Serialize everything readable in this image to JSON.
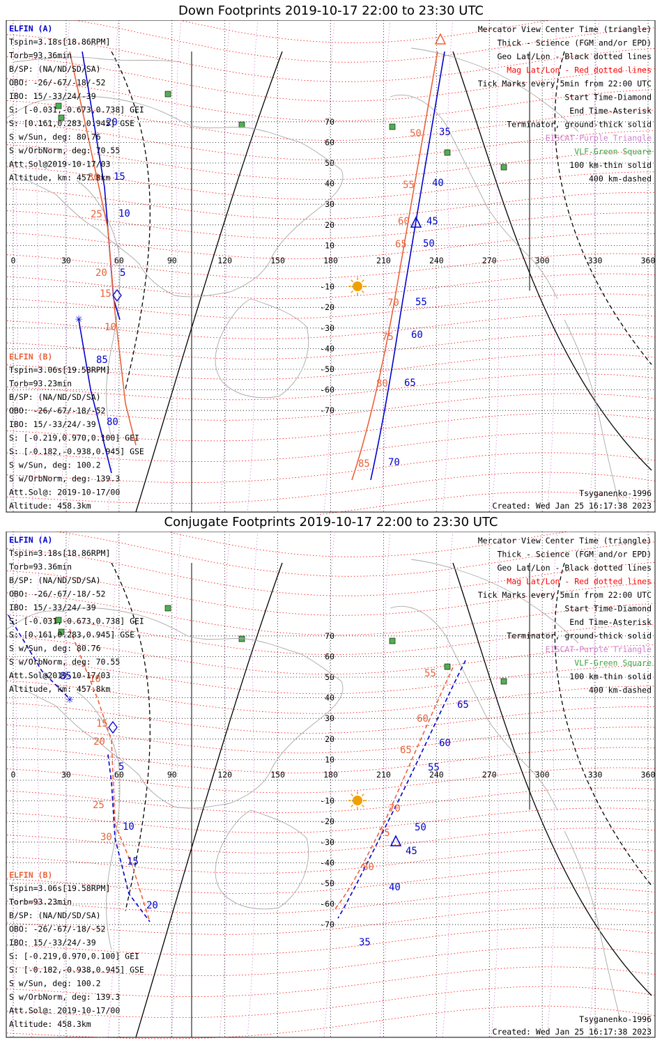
{
  "panels": [
    {
      "title": "Down Footprints 2019-10-17 22:00 to 23:30 UTC",
      "elfin_a": {
        "label": "ELFIN (A)",
        "lines": [
          "Tspin=3.18s[18.86RPM]",
          "Torb=93.36min",
          "B/SP: (NA/ND/SD/SA)",
          "OBO: -26/-67/-18/-52",
          "IBO: 15/-33/24/-39",
          "S: [-0.031,-0.673,0.738] GEI",
          "S: [0.161,0.283,0.945] GSE",
          "S w/Sun, deg: 80.76",
          "S w/OrbNorm, deg: 70.55",
          "Att.Sol@2019-10-17/03",
          "Altitude, km: 457.8km"
        ]
      },
      "elfin_b": {
        "label": "ELFIN (B)",
        "lines": [
          "Tspin=3.06s[19.58RPM]",
          "Torb=93.23min",
          "B/SP: (NA/ND/SD/SA)",
          "OBO: -26/-67/-18/-52",
          "IBO: 15/-33/24/-39",
          "S: [-0.219,0.970,0.100] GEI",
          "S: [-0.182,-0.938,0.945] GSE",
          "S w/Sun, deg: 100.2",
          "S w/OrbNorm, deg: 139.3",
          "Att.Sol@: 2019-10-17/00",
          "Altitude: 458.3km"
        ]
      },
      "legend": [
        {
          "text": "Mercator View Center Time (triangle)",
          "color": "#000000"
        },
        {
          "text": "Thick - Science (FGM and/or EPD)",
          "color": "#000000"
        },
        {
          "text": "Geo Lat/Lon - Black dotted lines",
          "color": "#000000"
        },
        {
          "text": "Mag Lat/Lon - Red dotted lines",
          "color": "#ff0000"
        },
        {
          "text": "Tick Marks every 5min from 22:00 UTC",
          "color": "#000000"
        },
        {
          "text": "Start Time-Diamond",
          "color": "#000000"
        },
        {
          "text": "End Time-Asterisk",
          "color": "#000000"
        },
        {
          "text": "Terminator, ground-thick solid",
          "color": "#000000"
        },
        {
          "text": "EISCAT-Purple Triangle",
          "color": "#d080d0"
        },
        {
          "text": "VLF-Green Square",
          "color": "#40a040"
        },
        {
          "text": "100 km-thin solid",
          "color": "#000000"
        },
        {
          "text": "400 km-dashed",
          "color": "#000000"
        }
      ],
      "model": "Tsyganenko-1996",
      "created": "Created: Wed Jan 25 16:17:38 2023",
      "lon_ticks": [
        "0",
        "30",
        "60",
        "90",
        "120",
        "150",
        "180",
        "210",
        "240",
        "270",
        "300",
        "330",
        "360"
      ],
      "lat_ticks": [
        "70",
        "60",
        "50",
        "40",
        "30",
        "20",
        "10",
        "-10",
        "-20",
        "-30",
        "-40",
        "-50",
        "-60",
        "-70"
      ],
      "track_a_ticks": [
        "5",
        "10",
        "15",
        "20",
        "35",
        "40",
        "45",
        "50",
        "55",
        "60",
        "65",
        "70",
        "85",
        "80"
      ],
      "track_b_ticks": [
        "10",
        "15",
        "20",
        "25",
        "30",
        "50",
        "55",
        "60",
        "65",
        "70",
        "75",
        "80",
        "85"
      ]
    },
    {
      "title": "Conjugate Footprints 2019-10-17 22:00 to 23:30 UTC",
      "elfin_a": {
        "label": "ELFIN (A)",
        "lines": [
          "Tspin=3.18s[18.86RPM]",
          "Torb=93.36min",
          "B/SP: (NA/ND/SD/SA)",
          "OBO: -26/-67/-18/-52",
          "IBO: 15/-33/24/-39",
          "S: [-0.031,-0.673,0.738] GEI",
          "S: [0.161,0.283,0.945] GSE",
          "S w/Sun, deg: 80.76",
          "S w/OrbNorm, deg: 70.55",
          "Att.Sol@2019-10-17/03",
          "Altitude, km: 457.8km"
        ]
      },
      "elfin_b": {
        "label": "ELFIN (B)",
        "lines": [
          "Tspin=3.06s[19.58RPM]",
          "Torb=93.23min",
          "B/SP: (NA/ND/SD/SA)",
          "OBO: -26/-67/-18/-52",
          "IBO: 15/-33/24/-39",
          "S: [-0.219,0.970,0.100] GEI",
          "S: [-0.182,-0.938,0.945] GSE",
          "S w/Sun, deg: 100.2",
          "S w/OrbNorm, deg: 139.3",
          "Att.Sol@: 2019-10-17/00",
          "Altitude: 458.3km"
        ]
      },
      "legend": [
        {
          "text": "Mercator View Center Time (triangle)",
          "color": "#000000"
        },
        {
          "text": "Thick - Science (FGM and/or EPD)",
          "color": "#000000"
        },
        {
          "text": "Geo Lat/Lon - Black dotted lines",
          "color": "#000000"
        },
        {
          "text": "Mag Lat/Lon - Red dotted lines",
          "color": "#ff0000"
        },
        {
          "text": "Tick Marks every 5min from 22:00 UTC",
          "color": "#000000"
        },
        {
          "text": "Start Time-Diamond",
          "color": "#000000"
        },
        {
          "text": "End Time-Asterisk",
          "color": "#000000"
        },
        {
          "text": "Terminator, ground-thick solid",
          "color": "#000000"
        },
        {
          "text": "EISCAT-Purple Triangle",
          "color": "#d080d0"
        },
        {
          "text": "VLF-Green Square",
          "color": "#40a040"
        },
        {
          "text": "100 km-thin solid",
          "color": "#000000"
        },
        {
          "text": "400 km-dashed",
          "color": "#000000"
        }
      ],
      "model": "Tsyganenko-1996",
      "created": "Created: Wed Jan 25 16:17:38 2023",
      "lon_ticks": [
        "0",
        "30",
        "60",
        "90",
        "120",
        "150",
        "180",
        "210",
        "240",
        "270",
        "300",
        "330",
        "360"
      ],
      "lat_ticks": [
        "70",
        "60",
        "50",
        "40",
        "30",
        "20",
        "10",
        "-10",
        "-20",
        "-30",
        "-40",
        "-50",
        "-60",
        "-70"
      ],
      "track_a_ticks": [
        "85",
        "5",
        "10",
        "15",
        "20",
        "35",
        "40",
        "45",
        "50",
        "55",
        "60",
        "65"
      ],
      "track_b_ticks": [
        "10",
        "15",
        "20",
        "25",
        "30",
        "55",
        "60",
        "65",
        "70",
        "75",
        "80"
      ]
    }
  ],
  "colors": {
    "elfin_a": "#0000cc",
    "elfin_b": "#e8623a",
    "mag_grid": "#ff0000",
    "geo_grid": "#000000",
    "eiscat": "#d080d0",
    "vlf": "#40a040",
    "sun": "#f0a000"
  }
}
